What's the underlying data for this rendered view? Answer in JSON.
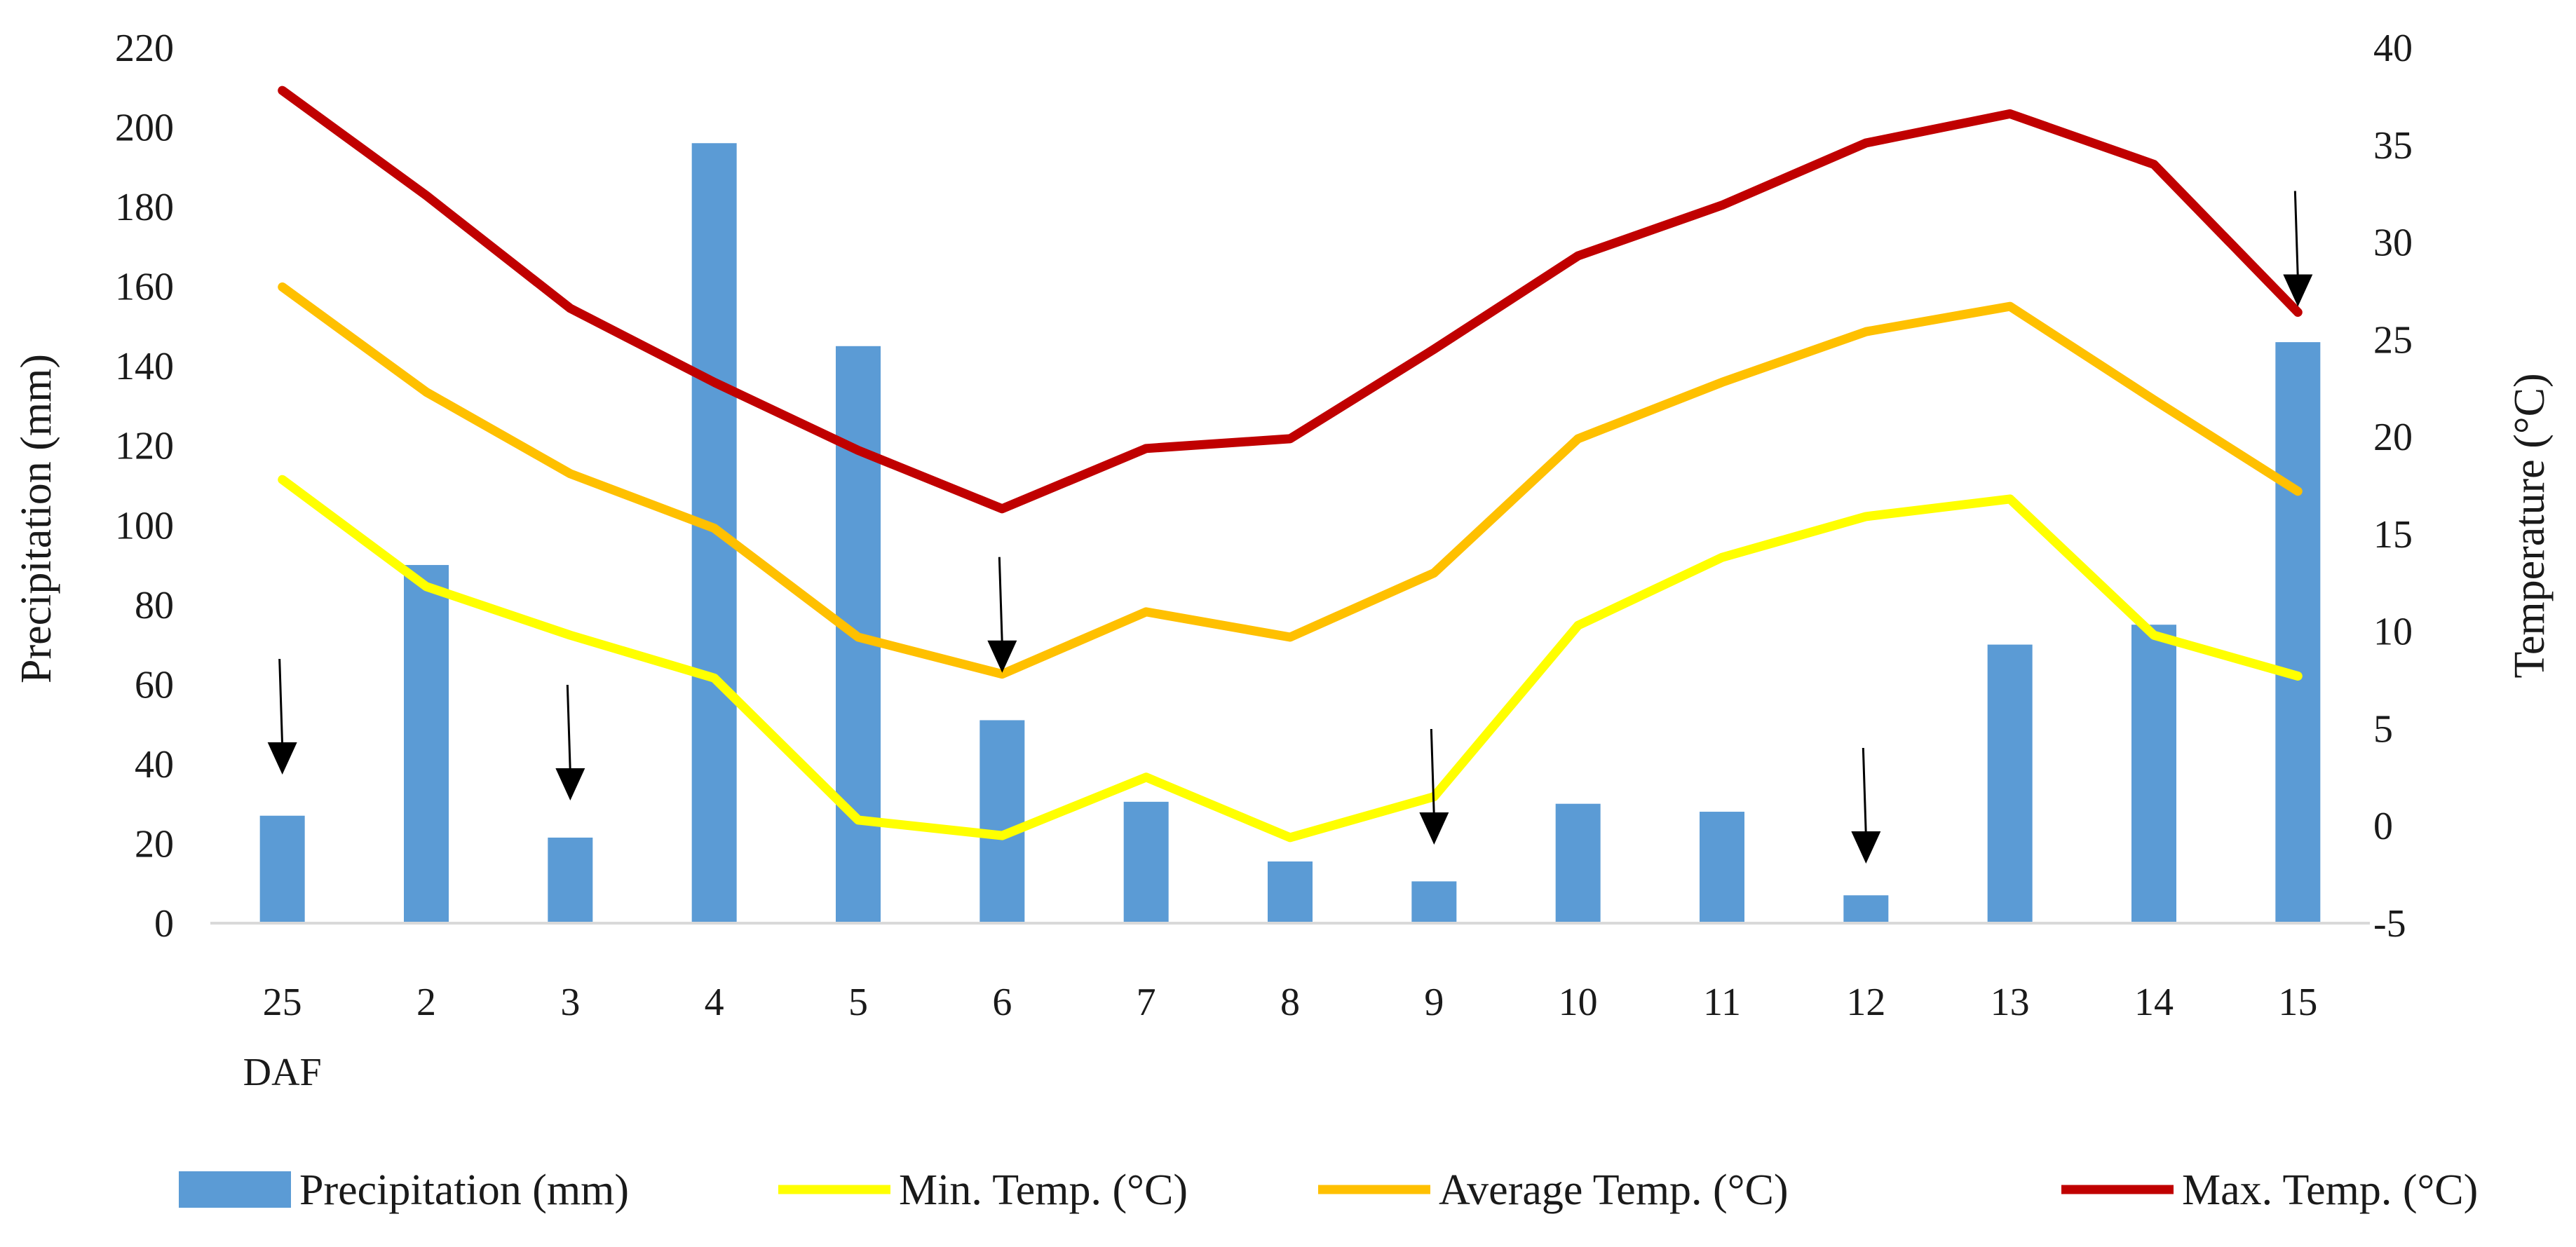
{
  "chart_data": {
    "type": "bar+line",
    "categories": [
      "25",
      "2",
      "3",
      "4",
      "5",
      "6",
      "7",
      "8",
      "9",
      "10",
      "11",
      "12",
      "13",
      "14",
      "15"
    ],
    "category_sublabel": {
      "index": 0,
      "text": "DAF"
    },
    "y_left": {
      "label": "Precipitation (mm)",
      "range": [
        0,
        220
      ],
      "ticks": [
        0,
        20,
        40,
        60,
        80,
        100,
        120,
        140,
        160,
        180,
        200,
        220
      ]
    },
    "y_right": {
      "label": "Temperature (°C)",
      "range": [
        -5,
        40
      ],
      "ticks": [
        -5,
        0,
        5,
        10,
        15,
        20,
        25,
        30,
        35,
        40
      ]
    },
    "series": [
      {
        "name": "Precipitation (mm)",
        "type": "bar",
        "axis": "left",
        "color": "#5B9BD5",
        "values": [
          27,
          90,
          21.5,
          196,
          145,
          51,
          30.5,
          15.5,
          10.5,
          30,
          28,
          7,
          70,
          75,
          146
        ]
      },
      {
        "name": "Min. Temp. (°C)",
        "type": "line",
        "axis": "right",
        "color": "#FFFF00",
        "values": [
          17.8,
          12.3,
          9.8,
          7.6,
          0.3,
          -0.5,
          2.5,
          -0.6,
          1.5,
          10.3,
          13.8,
          15.9,
          16.8,
          9.8,
          7.7
        ]
      },
      {
        "name": "Average Temp. (°C)",
        "type": "line",
        "axis": "right",
        "color": "#FFC000",
        "values": [
          27.7,
          22.3,
          18.1,
          15.3,
          9.7,
          7.8,
          11.0,
          9.7,
          13.0,
          19.9,
          22.8,
          25.4,
          26.7,
          21.9,
          17.2
        ]
      },
      {
        "name": "Max. Temp. (°C)",
        "type": "line",
        "axis": "right",
        "color": "#C00000",
        "values": [
          37.8,
          32.4,
          26.6,
          22.8,
          19.3,
          16.3,
          19.4,
          19.9,
          24.5,
          29.3,
          31.9,
          35.1,
          36.6,
          34.0,
          26.4
        ]
      }
    ],
    "annotations": {
      "type": "down-arrow",
      "category_indices": [
        0,
        2,
        5,
        8,
        11,
        14
      ],
      "color": "#000000"
    },
    "legend": {
      "placement": "bottom"
    },
    "grid": false
  }
}
